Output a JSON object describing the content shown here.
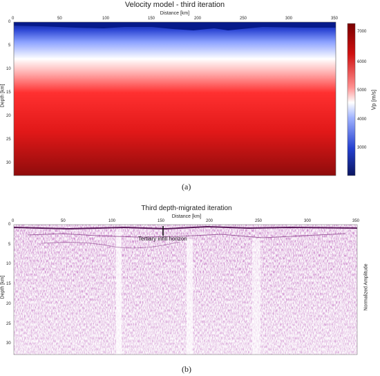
{
  "panel_a": {
    "title": "Velocity model - third iteration",
    "xlabel": "Distance [km]",
    "ylabel": "Depth [km]",
    "x_ticks": [
      "0",
      "50",
      "100",
      "150",
      "200",
      "250",
      "300",
      "350"
    ],
    "y_ticks": [
      "0",
      "5",
      "10",
      "15",
      "20",
      "25",
      "30"
    ],
    "colorbar_label": "Vp [m/s]",
    "colorbar_ticks": [
      "7000",
      "6000",
      "5000",
      "4000",
      "3000"
    ],
    "caption": "(a)",
    "colors": {
      "low": "#0a1f8f",
      "mid": "#ffffff",
      "high": "#8b0000"
    }
  },
  "panel_b": {
    "title": "Third depth-migrated iteration",
    "xlabel": "Distance [km]",
    "ylabel": "Depth [km]",
    "x_ticks": [
      "0",
      "50",
      "100",
      "150",
      "200",
      "250",
      "300",
      "350"
    ],
    "y_ticks": [
      "0",
      "5",
      "10",
      "15",
      "20",
      "25",
      "30"
    ],
    "annotation": "Tertiary infill horizon",
    "side_label": "Normalized Amplitude",
    "caption": "(b)",
    "colors": {
      "wiggle": "#8a2d8a"
    }
  }
}
